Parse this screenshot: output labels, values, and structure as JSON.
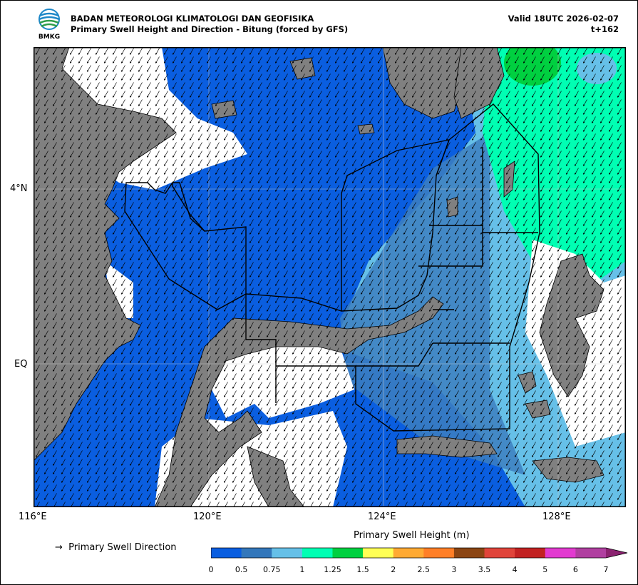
{
  "header": {
    "agency": "BADAN METEOROLOGI KLIMATOLOGI DAN GEOFISIKA",
    "subtitle": "Primary Swell Height and Direction - Bitung (forced by GFS)",
    "valid": "Valid 18UTC 2026-02-07",
    "lead": "t+162",
    "logo_text": "BMKG"
  },
  "map": {
    "lat_labels": [
      "4°N",
      "EQ"
    ],
    "lon_labels": [
      "116°E",
      "120°E",
      "124°E",
      "128°E"
    ],
    "colors": {
      "land": "#808080",
      "nodata": "#ffffff",
      "sea_low": "#0a5ee0",
      "sea_mid": "#3377bb",
      "sea_075": "#66c0e8",
      "sea_1": "#00ffb3",
      "sea_125": "#00d040"
    }
  },
  "legend": {
    "direction_label": "Primary Swell Direction",
    "colorbar_title": "Primary Swell Height (m)",
    "ticks": [
      "0",
      "0.5",
      "0.75",
      "1",
      "1.25",
      "1.5",
      "2",
      "2.5",
      "3",
      "3.5",
      "4",
      "5",
      "6",
      "7"
    ],
    "colors": [
      "#0a5ee0",
      "#3377bb",
      "#66c0e8",
      "#00ffb3",
      "#00d040",
      "#ffff55",
      "#ffaa33",
      "#ff7f27",
      "#8b4513",
      "#e0443a",
      "#c22222",
      "#e23ad0",
      "#b03fa0",
      "#8b2270"
    ]
  }
}
